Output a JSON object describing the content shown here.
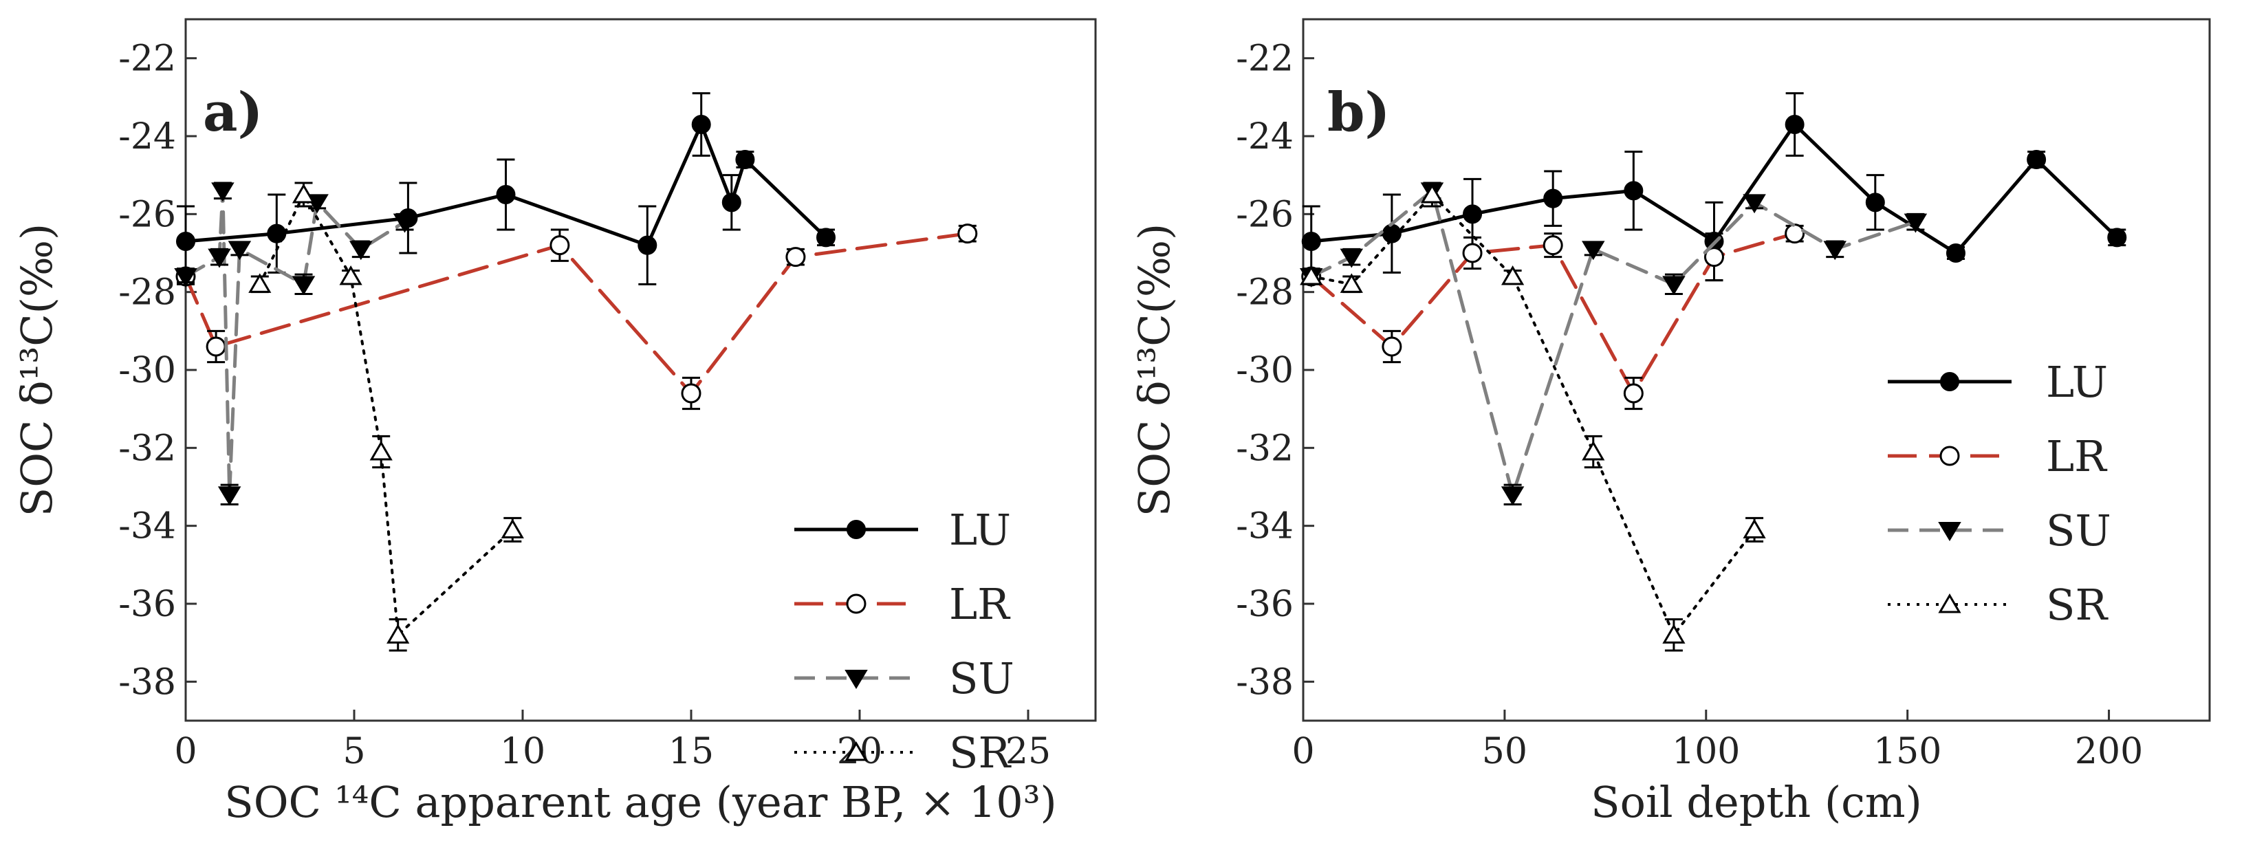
{
  "chart_data": [
    {
      "panel": "a)",
      "type": "line",
      "xlabel": "SOC ¹⁴C apparent age (year BP, × 10³)",
      "ylabel": "SOC δ¹³C(‰)",
      "xlim": [
        0,
        27
      ],
      "ylim": [
        -39,
        -21
      ],
      "xticks": [
        "0",
        "5",
        "10",
        "15",
        "20",
        "25"
      ],
      "yticks": [
        "-22",
        "-24",
        "-26",
        "-28",
        "-30",
        "-32",
        "-34",
        "-36",
        "-38"
      ],
      "legend_position": "lower-right",
      "series": [
        {
          "name": "LU",
          "color": "#000000",
          "dash": "solid",
          "marker": "filled-circle",
          "points": [
            {
              "x": 0,
              "y": -26.7,
              "err": 0.9
            },
            {
              "x": 2.7,
              "y": -26.5,
              "err": 1.0
            },
            {
              "x": 6.6,
              "y": -26.1,
              "err": 0.9
            },
            {
              "x": 9.5,
              "y": -25.5,
              "err": 0.9
            },
            {
              "x": 13.7,
              "y": -26.8,
              "err": 1.0
            },
            {
              "x": 15.3,
              "y": -23.7,
              "err": 0.8
            },
            {
              "x": 16.2,
              "y": -25.7,
              "err": 0.7
            },
            {
              "x": 16.6,
              "y": -24.6,
              "err": 0.2
            },
            {
              "x": 19.0,
              "y": -26.6,
              "err": 0.2
            }
          ]
        },
        {
          "name": "LR",
          "color": "#c0392b",
          "dash": "long-dash",
          "marker": "open-circle",
          "points": [
            {
              "x": 0,
              "y": -27.6,
              "err": 0.2
            },
            {
              "x": 0.9,
              "y": -29.4,
              "err": 0.4
            },
            {
              "x": 11.1,
              "y": -26.8,
              "err": 0.4
            },
            {
              "x": 15.0,
              "y": -30.6,
              "err": 0.4
            },
            {
              "x": 18.1,
              "y": -27.1,
              "err": 0.2
            },
            {
              "x": 23.2,
              "y": -26.5,
              "err": 0.2
            }
          ]
        },
        {
          "name": "SU",
          "color": "#808080",
          "dash": "dash",
          "marker": "filled-triangle-down",
          "points": [
            {
              "x": 0,
              "y": -27.6,
              "err": 0.15
            },
            {
              "x": 1.0,
              "y": -27.1,
              "err": 0.2
            },
            {
              "x": 1.1,
              "y": -25.4,
              "err": 0.2
            },
            {
              "x": 1.3,
              "y": -33.2,
              "err": 0.25
            },
            {
              "x": 1.6,
              "y": -26.9,
              "err": 0.15
            },
            {
              "x": 3.5,
              "y": -27.8,
              "err": 0.25
            },
            {
              "x": 3.9,
              "y": -25.7,
              "err": 0.15
            },
            {
              "x": 5.2,
              "y": -26.9,
              "err": 0.2
            },
            {
              "x": 6.5,
              "y": -26.2,
              "err": 0.2
            }
          ]
        },
        {
          "name": "SR",
          "color": "#000000",
          "dash": "dotted",
          "marker": "open-triangle-up",
          "points": [
            {
              "x": 2.2,
              "y": -27.8,
              "err": 0.2
            },
            {
              "x": 3.5,
              "y": -25.5,
              "err": 0.3
            },
            {
              "x": 4.9,
              "y": -27.6,
              "err": 0.15
            },
            {
              "x": 5.8,
              "y": -32.1,
              "err": 0.4
            },
            {
              "x": 6.3,
              "y": -36.8,
              "err": 0.4
            },
            {
              "x": 9.7,
              "y": -34.1,
              "err": 0.3
            }
          ]
        }
      ]
    },
    {
      "panel": "b)",
      "type": "line",
      "xlabel": "Soil depth (cm)",
      "ylabel": "SOC δ¹³C(‰)",
      "xlim": [
        0,
        225
      ],
      "ylim": [
        -39,
        -21
      ],
      "xticks": [
        "0",
        "50",
        "100",
        "150",
        "200"
      ],
      "yticks": [
        "-22",
        "-24",
        "-26",
        "-28",
        "-30",
        "-32",
        "-34",
        "-36",
        "-38"
      ],
      "legend_position": "middle-right",
      "series": [
        {
          "name": "LU",
          "color": "#000000",
          "dash": "solid",
          "marker": "filled-circle",
          "points": [
            {
              "x": 2,
              "y": -26.7,
              "err": 0.9
            },
            {
              "x": 22,
              "y": -26.5,
              "err": 1.0
            },
            {
              "x": 42,
              "y": -26.0,
              "err": 0.9
            },
            {
              "x": 62,
              "y": -25.6,
              "err": 0.7
            },
            {
              "x": 82,
              "y": -25.4,
              "err": 1.0
            },
            {
              "x": 102,
              "y": -26.7,
              "err": 1.0
            },
            {
              "x": 122,
              "y": -23.7,
              "err": 0.8
            },
            {
              "x": 142,
              "y": -25.7,
              "err": 0.7
            },
            {
              "x": 162,
              "y": -27.0,
              "err": 0.15
            },
            {
              "x": 182,
              "y": -24.6,
              "err": 0.2
            },
            {
              "x": 202,
              "y": -26.6,
              "err": 0.2
            }
          ]
        },
        {
          "name": "LR",
          "color": "#c0392b",
          "dash": "long-dash",
          "marker": "open-circle",
          "points": [
            {
              "x": 2,
              "y": -27.6,
              "err": 0.2
            },
            {
              "x": 22,
              "y": -29.4,
              "err": 0.4
            },
            {
              "x": 42,
              "y": -27.0,
              "err": 0.4
            },
            {
              "x": 62,
              "y": -26.8,
              "err": 0.3
            },
            {
              "x": 82,
              "y": -30.6,
              "err": 0.4
            },
            {
              "x": 102,
              "y": -27.1,
              "err": 0.6
            },
            {
              "x": 122,
              "y": -26.5,
              "err": 0.2
            }
          ]
        },
        {
          "name": "SU",
          "color": "#808080",
          "dash": "dash",
          "marker": "filled-triangle-down",
          "points": [
            {
              "x": 2,
              "y": -27.6,
              "err": 0.15
            },
            {
              "x": 12,
              "y": -27.1,
              "err": 0.2
            },
            {
              "x": 32,
              "y": -25.4,
              "err": 0.2
            },
            {
              "x": 52,
              "y": -33.2,
              "err": 0.25
            },
            {
              "x": 72,
              "y": -26.9,
              "err": 0.15
            },
            {
              "x": 92,
              "y": -27.8,
              "err": 0.25
            },
            {
              "x": 112,
              "y": -25.7,
              "err": 0.15
            },
            {
              "x": 132,
              "y": -26.9,
              "err": 0.2
            },
            {
              "x": 152,
              "y": -26.2,
              "err": 0.2
            }
          ]
        },
        {
          "name": "SR",
          "color": "#000000",
          "dash": "dotted",
          "marker": "open-triangle-up",
          "points": [
            {
              "x": 2,
              "y": -27.6,
              "err": 0.15
            },
            {
              "x": 12,
              "y": -27.8,
              "err": 0.2
            },
            {
              "x": 32,
              "y": -25.5,
              "err": 0.3
            },
            {
              "x": 52,
              "y": -27.6,
              "err": 0.15
            },
            {
              "x": 72,
              "y": -32.1,
              "err": 0.4
            },
            {
              "x": 92,
              "y": -36.8,
              "err": 0.4
            },
            {
              "x": 112,
              "y": -34.1,
              "err": 0.3
            }
          ]
        }
      ]
    }
  ]
}
